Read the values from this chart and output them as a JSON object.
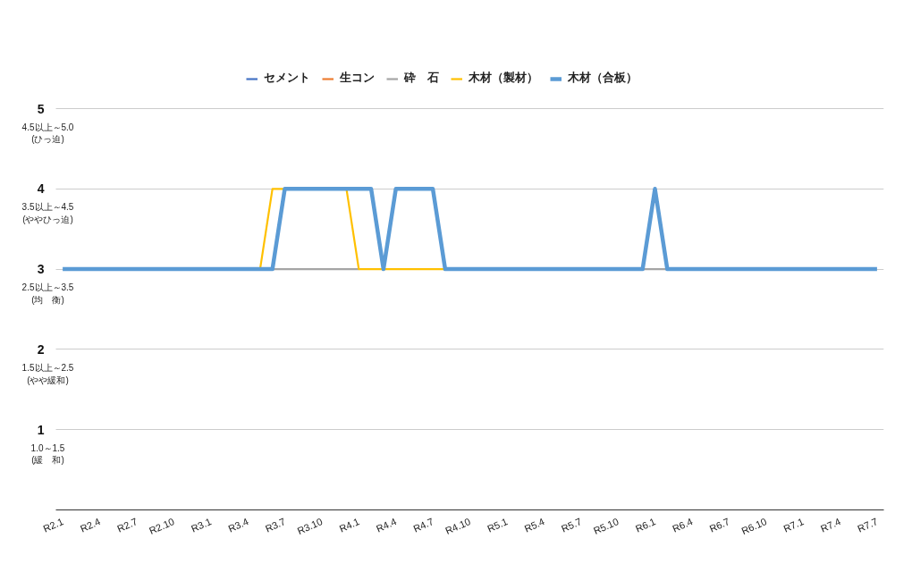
{
  "chart_data": {
    "type": "line",
    "categories": [
      "R2.1",
      null,
      null,
      "R2.4",
      null,
      null,
      "R2.7",
      null,
      null,
      "R2.10",
      null,
      null,
      "R3.1",
      null,
      null,
      "R3.4",
      null,
      null,
      "R3.7",
      null,
      null,
      "R3.10",
      null,
      null,
      "R4.1",
      null,
      null,
      "R4.4",
      null,
      null,
      "R4.7",
      null,
      null,
      "R4.10",
      null,
      null,
      "R5.1",
      null,
      null,
      "R5.4",
      null,
      null,
      "R5.7",
      null,
      null,
      "R5.10",
      null,
      null,
      "R6.1",
      null,
      null,
      "R6.4",
      null,
      null,
      "R6.7",
      null,
      null,
      "R6.10",
      null,
      null,
      "R7.1",
      null,
      null,
      "R7.4",
      null,
      null,
      "R7.7"
    ],
    "series": [
      {
        "name": "セメント",
        "color": "#4472c4",
        "values": [
          null,
          null,
          null,
          null,
          null,
          null,
          null,
          null,
          null,
          null,
          null,
          null,
          null,
          null,
          null,
          null,
          null,
          null,
          null,
          null,
          null,
          null,
          null,
          null,
          null,
          null,
          null,
          null,
          null,
          null,
          null,
          null,
          null,
          null,
          null,
          null,
          null,
          null,
          null,
          null,
          null,
          null,
          null,
          null,
          null,
          null,
          null,
          null,
          null,
          null,
          null,
          null,
          null,
          null,
          null,
          null,
          null,
          null,
          null,
          null,
          null,
          null,
          null,
          null,
          null,
          null,
          null
        ]
      },
      {
        "name": "生コン",
        "color": "#ed7d31",
        "values": [
          null,
          null,
          null,
          null,
          null,
          null,
          null,
          null,
          null,
          null,
          null,
          null,
          null,
          null,
          null,
          null,
          null,
          null,
          null,
          null,
          null,
          null,
          null,
          null,
          null,
          null,
          null,
          null,
          null,
          null,
          null,
          null,
          null,
          null,
          null,
          null,
          null,
          null,
          null,
          null,
          null,
          null,
          null,
          null,
          null,
          null,
          null,
          null,
          null,
          null,
          null,
          null,
          null,
          null,
          null,
          null,
          null,
          null,
          null,
          null,
          null,
          null,
          null,
          null,
          null,
          null,
          null
        ]
      },
      {
        "name": "砕　石",
        "color": "#a5a5a5",
        "values": [
          null,
          null,
          null,
          null,
          null,
          null,
          null,
          null,
          null,
          null,
          null,
          null,
          null,
          null,
          null,
          null,
          null,
          3,
          3,
          3,
          3,
          3,
          3,
          3,
          3,
          null,
          null,
          null,
          null,
          null,
          null,
          null,
          null,
          null,
          null,
          null,
          null,
          null,
          null,
          null,
          null,
          null,
          null,
          null,
          null,
          null,
          null,
          3,
          3,
          3,
          null,
          null,
          null,
          null,
          null,
          null,
          null,
          null,
          null,
          null,
          null,
          null,
          null,
          null,
          null,
          null,
          null
        ]
      },
      {
        "name": "木材（製材）",
        "color": "#ffc000",
        "values": [
          null,
          null,
          null,
          null,
          null,
          null,
          null,
          null,
          null,
          null,
          null,
          null,
          null,
          null,
          null,
          null,
          3,
          4,
          4,
          null,
          null,
          null,
          null,
          4,
          3,
          3,
          3,
          3,
          3,
          3,
          3,
          3,
          null,
          null,
          null,
          null,
          null,
          null,
          null,
          null,
          null,
          null,
          null,
          null,
          null,
          null,
          null,
          null,
          null,
          null,
          null,
          null,
          null,
          null,
          null,
          null,
          null,
          null,
          null,
          null,
          null,
          null,
          null,
          null,
          null,
          null,
          null
        ]
      },
      {
        "name": "木材（合板）",
        "color": "#5b9bd5",
        "values": [
          3,
          3,
          3,
          3,
          3,
          3,
          3,
          3,
          3,
          3,
          3,
          3,
          3,
          3,
          3,
          3,
          3,
          3,
          4,
          4,
          4,
          4,
          4,
          4,
          4,
          4,
          3,
          4,
          4,
          4,
          4,
          3,
          3,
          3,
          3,
          3,
          3,
          3,
          3,
          3,
          3,
          3,
          3,
          3,
          3,
          3,
          3,
          3,
          4,
          3,
          3,
          3,
          3,
          3,
          3,
          3,
          3,
          3,
          3,
          3,
          3,
          3,
          3,
          3,
          3,
          3,
          3
        ]
      }
    ],
    "ylim": [
      0,
      5
    ],
    "yticks": [
      1,
      2,
      3,
      4,
      5
    ],
    "annotations": [
      "4.5以上～5.0\n(ひっ迫)",
      "3.5以上～4.5\n(ややひっ迫)",
      "2.5以上～3.5\n(均　衡)",
      "1.5以上～2.5\n(やや緩和)",
      "1.0～1.5\n(緩　和)"
    ],
    "grid": "y",
    "legend": "top"
  }
}
